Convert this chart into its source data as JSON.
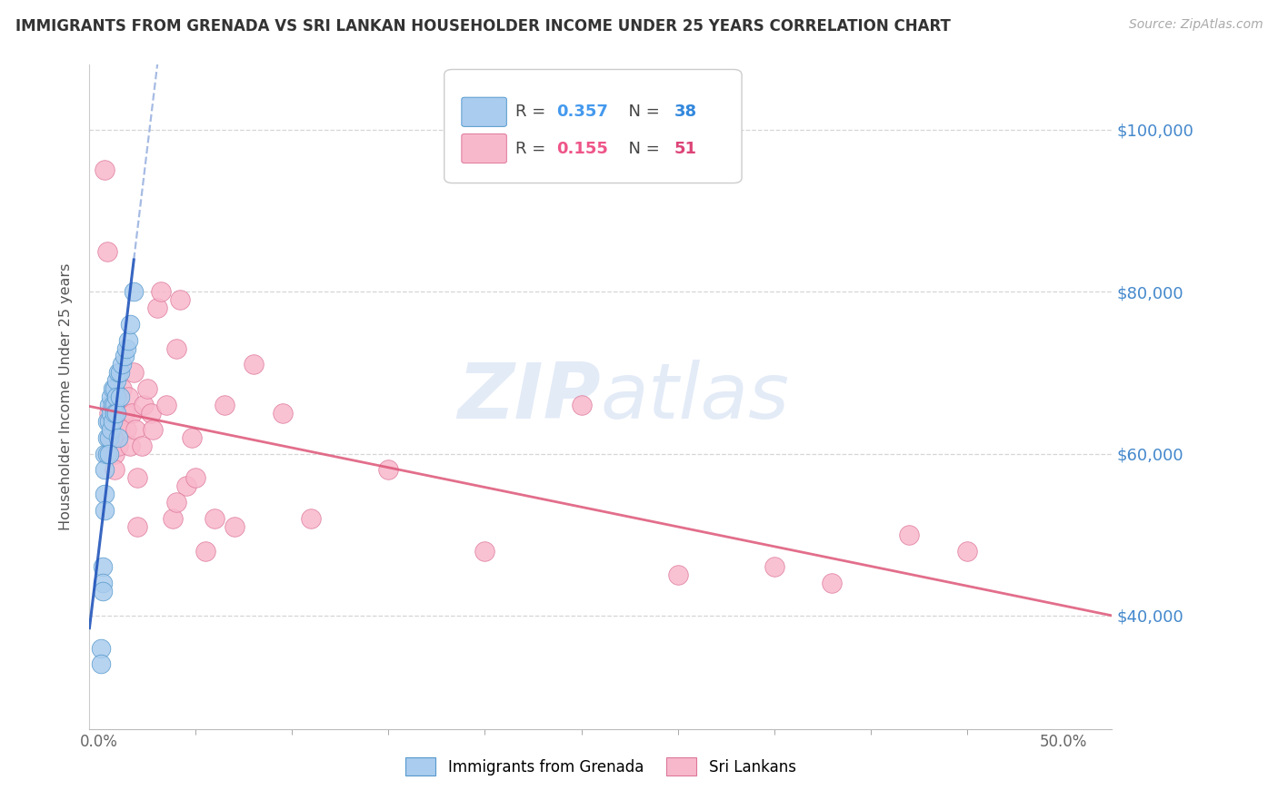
{
  "title": "IMMIGRANTS FROM GRENADA VS SRI LANKAN HOUSEHOLDER INCOME UNDER 25 YEARS CORRELATION CHART",
  "source": "Source: ZipAtlas.com",
  "ylabel": "Householder Income Under 25 years",
  "x_tick_vals": [
    0.0,
    0.5
  ],
  "x_tick_labels": [
    "0.0%",
    "50.0%"
  ],
  "y_tick_vals": [
    40000,
    60000,
    80000,
    100000
  ],
  "y_tick_labels": [
    "$40,000",
    "$60,000",
    "$80,000",
    "$100,000"
  ],
  "ymin": 26000,
  "ymax": 108000,
  "xmin": -0.005,
  "xmax": 0.525,
  "grenada_R": 0.357,
  "grenada_N": 38,
  "srilanka_R": 0.155,
  "srilanka_N": 51,
  "grenada_dot_color": "#aaccee",
  "grenada_edge_color": "#5599cc",
  "grenada_line_color": "#2255bb",
  "srilanka_dot_color": "#f8b8cc",
  "srilanka_edge_color": "#dd7799",
  "srilanka_line_color": "#dd5577",
  "watermark_color": "#c8d8f0",
  "right_label_color": "#4488cc",
  "legend_r_grenada_color": "#4499ee",
  "legend_n_grenada_color": "#3388dd",
  "legend_r_srilanka_color": "#ee5588",
  "legend_n_srilanka_color": "#dd4477",
  "grenada_x": [
    0.001,
    0.001,
    0.002,
    0.002,
    0.002,
    0.003,
    0.003,
    0.003,
    0.003,
    0.004,
    0.004,
    0.004,
    0.005,
    0.005,
    0.005,
    0.005,
    0.006,
    0.006,
    0.006,
    0.007,
    0.007,
    0.007,
    0.008,
    0.008,
    0.008,
    0.009,
    0.009,
    0.009,
    0.01,
    0.01,
    0.011,
    0.011,
    0.012,
    0.013,
    0.014,
    0.015,
    0.016,
    0.018
  ],
  "grenada_y": [
    36000,
    34000,
    46000,
    44000,
    43000,
    60000,
    58000,
    55000,
    53000,
    64000,
    62000,
    60000,
    66000,
    64000,
    62000,
    60000,
    67000,
    65000,
    63000,
    68000,
    66000,
    64000,
    68000,
    66000,
    65000,
    69000,
    67000,
    65000,
    70000,
    62000,
    70000,
    67000,
    71000,
    72000,
    73000,
    74000,
    76000,
    80000
  ],
  "srilanka_x": [
    0.003,
    0.004,
    0.005,
    0.006,
    0.007,
    0.008,
    0.008,
    0.009,
    0.01,
    0.011,
    0.012,
    0.013,
    0.014,
    0.015,
    0.016,
    0.017,
    0.018,
    0.019,
    0.02,
    0.022,
    0.023,
    0.025,
    0.027,
    0.028,
    0.03,
    0.032,
    0.035,
    0.038,
    0.04,
    0.042,
    0.045,
    0.048,
    0.05,
    0.055,
    0.06,
    0.065,
    0.07,
    0.08,
    0.095,
    0.11,
    0.15,
    0.2,
    0.25,
    0.3,
    0.35,
    0.38,
    0.42,
    0.45,
    0.04,
    0.02,
    0.007
  ],
  "srilanka_y": [
    95000,
    85000,
    65000,
    62000,
    65000,
    60000,
    58000,
    64000,
    61000,
    63000,
    68000,
    65000,
    63000,
    67000,
    61000,
    65000,
    70000,
    63000,
    57000,
    61000,
    66000,
    68000,
    65000,
    63000,
    78000,
    80000,
    66000,
    52000,
    73000,
    79000,
    56000,
    62000,
    57000,
    48000,
    52000,
    66000,
    51000,
    71000,
    65000,
    52000,
    58000,
    48000,
    66000,
    45000,
    46000,
    44000,
    50000,
    48000,
    54000,
    51000,
    62000
  ]
}
